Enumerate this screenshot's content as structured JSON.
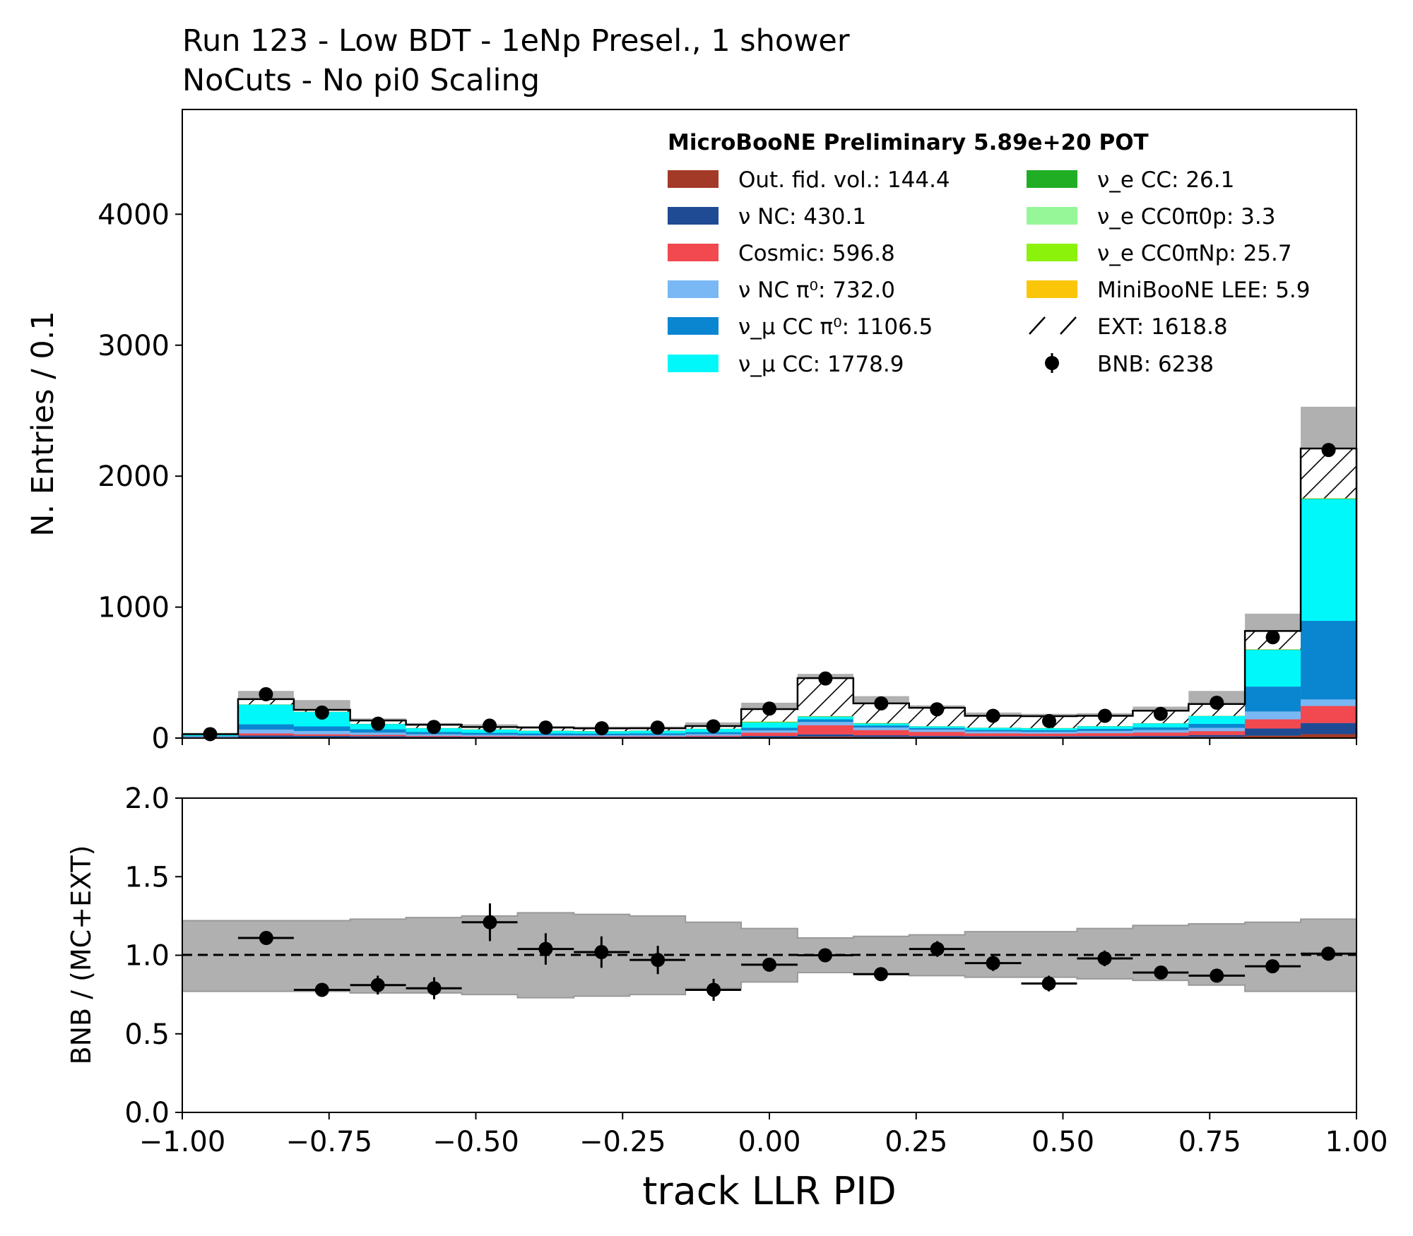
{
  "chart_data": [
    {
      "type": "bar",
      "stacked": true,
      "title": "Run 123 - Low BDT - 1eNp Presel., 1 shower\nNoCuts - No pi0 Scaling",
      "title_lines": [
        "Run 123 - Low BDT - 1eNp Presel., 1 shower",
        "NoCuts - No pi0 Scaling"
      ],
      "ylabel": "N. Entries / 0.1",
      "xlim": [
        -1.0,
        1.0
      ],
      "ylim": [
        0,
        4800
      ],
      "yticks": [
        0,
        1000,
        2000,
        3000,
        4000
      ],
      "bin_edges": [
        -1.0,
        -0.905,
        -0.81,
        -0.714,
        -0.619,
        -0.524,
        -0.429,
        -0.333,
        -0.238,
        -0.143,
        -0.048,
        0.048,
        0.143,
        0.238,
        0.333,
        0.429,
        0.524,
        0.619,
        0.714,
        0.81,
        0.905,
        1.0
      ],
      "legend_title": "MicroBooNE Preliminary 5.89e+20 POT",
      "legend_position": "top-right",
      "series": [
        {
          "name": "Out. fid. vol.: 144.4",
          "color": "#a33a27",
          "values": [
            2,
            5,
            5,
            4,
            3,
            3,
            3,
            3,
            3,
            4,
            6,
            12,
            9,
            7,
            6,
            6,
            6,
            7,
            9,
            18,
            30
          ]
        },
        {
          "name": "ν NC: 430.1",
          "color": "#1f4b94",
          "values": [
            3,
            15,
            12,
            10,
            7,
            6,
            5,
            5,
            5,
            6,
            10,
            16,
            12,
            10,
            8,
            8,
            9,
            10,
            14,
            55,
            85
          ]
        },
        {
          "name": "Cosmic: 596.8",
          "color": "#f2484f",
          "values": [
            2,
            15,
            12,
            10,
            7,
            6,
            5,
            5,
            5,
            8,
            25,
            70,
            40,
            30,
            22,
            20,
            22,
            25,
            30,
            70,
            130
          ]
        },
        {
          "name": "ν NC π⁰: 732.0",
          "color": "#79b8f4",
          "values": [
            5,
            30,
            25,
            18,
            12,
            10,
            9,
            9,
            10,
            12,
            18,
            25,
            20,
            18,
            15,
            14,
            18,
            20,
            25,
            60,
            50
          ]
        },
        {
          "name": "ν_μ CC π⁰: 1106.5",
          "color": "#0a86d1",
          "values": [
            5,
            40,
            35,
            25,
            18,
            15,
            13,
            12,
            13,
            15,
            20,
            20,
            15,
            12,
            12,
            12,
            15,
            20,
            30,
            190,
            600
          ]
        },
        {
          "name": "ν_μ CC: 1778.9",
          "color": "#00f8fb",
          "values": [
            8,
            150,
            110,
            40,
            28,
            25,
            20,
            18,
            20,
            25,
            40,
            20,
            15,
            12,
            15,
            15,
            20,
            30,
            60,
            280,
            930
          ]
        },
        {
          "name": "ν_e CC: 26.1",
          "color": "#1fae24",
          "values": [
            0,
            1,
            1,
            1,
            1,
            1,
            1,
            1,
            1,
            1,
            2,
            2,
            2,
            1,
            1,
            1,
            1,
            1,
            1,
            2,
            3
          ]
        },
        {
          "name": "ν_e CC0π0p: 3.3",
          "color": "#95f797",
          "values": [
            0,
            0,
            0,
            0,
            0,
            0,
            0,
            0,
            0,
            0,
            0,
            1,
            0,
            0,
            0,
            0,
            0,
            0,
            0,
            0,
            0
          ]
        },
        {
          "name": "ν_e CC0πNp: 25.7",
          "color": "#8bf20c",
          "values": [
            0,
            1,
            1,
            1,
            1,
            1,
            1,
            1,
            1,
            1,
            4,
            2,
            2,
            1,
            1,
            1,
            1,
            1,
            1,
            2,
            2
          ]
        },
        {
          "name": "MiniBooNE LEE: 5.9",
          "color": "#fbc60a",
          "values": [
            0,
            0,
            0,
            0,
            0,
            0,
            0,
            0,
            0,
            0,
            1,
            0,
            0,
            0,
            0,
            0,
            0,
            0,
            0,
            1,
            1
          ]
        },
        {
          "name": "EXT: 1618.8",
          "color": "#ffffff",
          "hatch": true,
          "values": [
            5,
            40,
            15,
            25,
            25,
            17,
            23,
            20,
            17,
            20,
            95,
            290,
            150,
            140,
            90,
            90,
            78,
            95,
            90,
            140,
            380
          ]
        }
      ],
      "uncertainty_band": {
        "color": "#b0b0b0",
        "upper": [
          40,
          360,
          290,
          150,
          115,
          105,
          92,
          88,
          88,
          120,
          270,
          490,
          320,
          250,
          195,
          185,
          190,
          240,
          360,
          950,
          2530
        ]
      },
      "data_series": {
        "name": "BNB: 6238",
        "values": [
          30,
          335,
          195,
          110,
          85,
          95,
          80,
          75,
          80,
          90,
          225,
          455,
          265,
          220,
          170,
          130,
          170,
          185,
          270,
          770,
          2200
        ],
        "errors": [
          6,
          18,
          14,
          10,
          9,
          10,
          9,
          9,
          9,
          9,
          15,
          21,
          16,
          15,
          13,
          11,
          13,
          14,
          16,
          28,
          47
        ]
      }
    },
    {
      "type": "scatter",
      "xlabel": "track LLR PID",
      "ylabel": "BNB / (MC+EXT)",
      "xlim": [
        -1.0,
        1.0
      ],
      "ylim": [
        0.0,
        2.0
      ],
      "yticks": [
        "0.0",
        "0.5",
        "1.0",
        "1.5",
        "2.0"
      ],
      "xticks": [
        "−1.00",
        "−0.75",
        "−0.50",
        "−0.25",
        "0.00",
        "0.25",
        "0.50",
        "0.75",
        "1.00"
      ],
      "xtick_values": [
        -1.0,
        -0.75,
        -0.5,
        -0.25,
        0.0,
        0.25,
        0.5,
        0.75,
        1.0
      ],
      "reference_line": 1.0,
      "x": [
        -0.952,
        -0.857,
        -0.762,
        -0.667,
        -0.571,
        -0.476,
        -0.381,
        -0.286,
        -0.19,
        -0.095,
        0.0,
        0.095,
        0.19,
        0.286,
        0.381,
        0.476,
        0.571,
        0.667,
        0.762,
        0.857,
        0.952
      ],
      "values": [
        null,
        1.11,
        0.78,
        0.81,
        0.79,
        1.21,
        1.04,
        1.02,
        0.97,
        0.78,
        0.94,
        1.0,
        0.88,
        1.04,
        0.95,
        0.82,
        0.98,
        0.89,
        0.87,
        0.93,
        1.01
      ],
      "errors": [
        null,
        0.04,
        0.03,
        0.06,
        0.07,
        0.12,
        0.1,
        0.1,
        0.09,
        0.07,
        0.04,
        0.03,
        0.02,
        0.05,
        0.05,
        0.05,
        0.05,
        0.04,
        0.03,
        0.02,
        0.02
      ],
      "uncertainty_band": {
        "color": "#b0b0b0",
        "lower": [
          0.77,
          0.77,
          0.77,
          0.76,
          0.76,
          0.75,
          0.73,
          0.74,
          0.75,
          0.79,
          0.83,
          0.89,
          0.88,
          0.87,
          0.86,
          0.86,
          0.85,
          0.84,
          0.81,
          0.77,
          0.77
        ],
        "upper": [
          1.22,
          1.22,
          1.22,
          1.23,
          1.24,
          1.25,
          1.27,
          1.26,
          1.25,
          1.21,
          1.17,
          1.11,
          1.12,
          1.13,
          1.15,
          1.15,
          1.17,
          1.19,
          1.2,
          1.21,
          1.23
        ]
      }
    }
  ]
}
